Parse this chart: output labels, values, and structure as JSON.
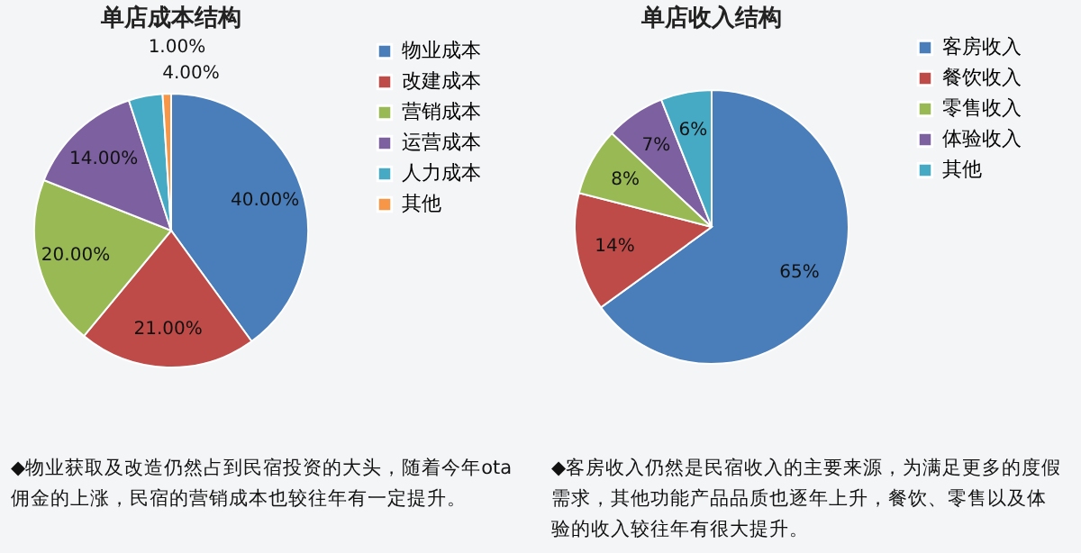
{
  "chart_data": [
    {
      "type": "pie",
      "title": "单店成本结构",
      "categories": [
        "物业成本",
        "改建成本",
        "营销成本",
        "运营成本",
        "人力成本",
        "其他"
      ],
      "values": [
        40,
        21,
        20,
        14,
        4,
        1
      ],
      "value_labels": [
        "40.00%",
        "21.00%",
        "20.00%",
        "14.00%",
        "4.00%",
        "1.00%"
      ],
      "colors": [
        "#4a7ebb",
        "#be4b48",
        "#98b954",
        "#7d60a0",
        "#46aac5",
        "#f79646"
      ],
      "legend": "right",
      "annotations": [
        "◆物业获取及改造仍然占到民宿投资的大头，随着今年ota佣金的上涨，民宿的营销成本也较往年有一定提升。"
      ]
    },
    {
      "type": "pie",
      "title": "单店收入结构",
      "categories": [
        "客房收入",
        "餐饮收入",
        "零售收入",
        "体验收入",
        "其他"
      ],
      "values": [
        65,
        14,
        8,
        7,
        6
      ],
      "value_labels": [
        "65%",
        "14%",
        "8%",
        "7%",
        "6%"
      ],
      "colors": [
        "#4a7ebb",
        "#be4b48",
        "#98b954",
        "#7d60a0",
        "#46aac5"
      ],
      "legend": "right",
      "annotations": [
        "◆客房收入仍然是民宿收入的主要来源，为满足更多的度假需求，其他功能产品品质也逐年上升，餐饮、零售以及体验的收入较往年有很大提升。"
      ]
    }
  ]
}
